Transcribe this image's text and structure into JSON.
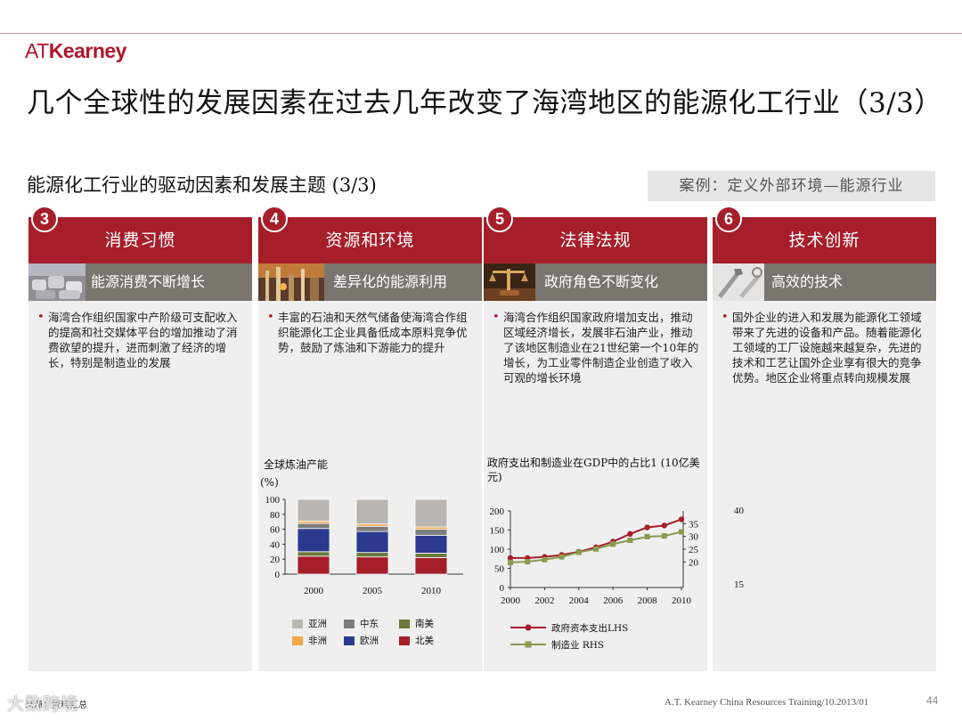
{
  "brand": {
    "logo_a": "AT",
    "logo_b": "Kearney",
    "accent": "#a61e2a"
  },
  "title": "几个全球性的发展因素在过去几年改变了海湾地区的能源化工行业（3/3）",
  "subtitle": "能源化工行业的驱动因素和发展主题 (3/3)",
  "case_label": "案例：定义外部环境—能源行业",
  "columns": [
    {
      "num": "3",
      "heading": "消费习惯",
      "sub": "能源消费不断增长",
      "photo_icon": "traffic-cars-photo",
      "bullet": "海湾合作组织国家中产阶级可支配收入的提高和社交媒体平台的增加推动了消费欲望的提升，进而刺激了经济的增长，特别是制造业的发展"
    },
    {
      "num": "4",
      "heading": "资源和环境",
      "sub": "差异化的能源利用",
      "photo_icon": "refinery-photo",
      "bullet": "丰富的石油和天然气储备使海湾合作组织能源化工企业具备低成本原料竞争优势，鼓励了炼油和下游能力的提升"
    },
    {
      "num": "5",
      "heading": "法律法规",
      "sub": "政府角色不断变化",
      "photo_icon": "gavel-scales-photo",
      "bullet": "海湾合作组织国家政府增加支出，推动区域经济增长，发展非石油产业，推动了该地区制造业在21世纪第一个10年的增长，为工业零件制造企业创造了收入可观的增长环境"
    },
    {
      "num": "6",
      "heading": "技术创新",
      "sub": "高效的技术",
      "photo_icon": "tools-photo",
      "bullet": "国外企业的进入和发展为能源化工领域带来了先进的设备和产品。随着能源化工领域的工厂设施越来越复杂，先进的技术和工艺让国外企业享有很大的竞争优势。地区企业将重点转向规模发展"
    }
  ],
  "extra_ticks": {
    "top": "40",
    "bottom": "15"
  },
  "chart_data": [
    {
      "type": "bar",
      "stacked": true,
      "title": "全球炼油产能",
      "ylabel": "(%)",
      "categories": [
        "2000",
        "2005",
        "2010"
      ],
      "ylim": [
        0,
        100
      ],
      "yticks": [
        "0",
        "20",
        "40",
        "60",
        "80",
        "100"
      ],
      "series": [
        {
          "name": "北美",
          "color": "#a61e2a",
          "values": [
            24,
            23,
            22
          ]
        },
        {
          "name": "南美",
          "color": "#6b7a3a",
          "values": [
            6,
            6,
            6
          ]
        },
        {
          "name": "欧洲",
          "color": "#2b3a8f",
          "values": [
            31,
            28,
            24
          ]
        },
        {
          "name": "中东",
          "color": "#7d7d7d",
          "values": [
            7,
            7,
            8
          ]
        },
        {
          "name": "非洲",
          "color": "#f3a64a",
          "values": [
            3,
            3,
            3
          ]
        },
        {
          "name": "亚洲",
          "color": "#b9b6b1",
          "values": [
            29,
            33,
            37
          ]
        }
      ],
      "legend_order": [
        "亚洲",
        "中东",
        "南美",
        "非洲",
        "欧洲",
        "北美"
      ]
    },
    {
      "type": "line",
      "title": "政府支出和制造业在GDP中的占比1 (10亿美元)",
      "x": [
        2000,
        2001,
        2002,
        2003,
        2004,
        2005,
        2006,
        2007,
        2008,
        2009,
        2010
      ],
      "xticks": [
        "2000",
        "2002",
        "2004",
        "2006",
        "2008",
        "2010"
      ],
      "y_left_ticks": [
        "0",
        "50",
        "100",
        "150",
        "200"
      ],
      "y_left_lim": [
        0,
        200
      ],
      "y_right_ticks": [
        "20",
        "25",
        "30",
        "35"
      ],
      "y_right_lim": [
        10,
        40
      ],
      "series": [
        {
          "name": "政府资本支出LHS",
          "axis": "left",
          "color": "#a61e2a",
          "marker": "circle",
          "values": [
            77,
            77,
            80,
            85,
            93,
            105,
            120,
            140,
            157,
            162,
            178
          ]
        },
        {
          "name": "制造业 RHS",
          "axis": "right",
          "color": "#8a9a50",
          "marker": "square",
          "values": [
            19.8,
            20.1,
            20.9,
            22.0,
            23.8,
            25.1,
            27.0,
            28.5,
            29.9,
            30.2,
            31.8
          ]
        }
      ]
    }
  ],
  "source_label": "来源：资料汇总",
  "footer": "A.T. Kearney  China Resources  Training/10.2013/01",
  "page_number": "44",
  "watermark": "大数跨境"
}
